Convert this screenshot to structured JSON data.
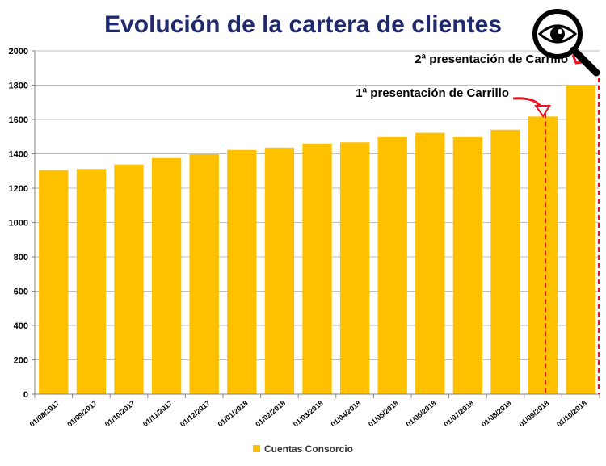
{
  "chart_data": {
    "type": "bar",
    "title": "Evolución de la cartera de clientes",
    "categories": [
      "01/08/2017",
      "01/09/2017",
      "01/10/2017",
      "01/11/2017",
      "01/12/2017",
      "01/01/2018",
      "01/02/2018",
      "01/03/2018",
      "01/04/2018",
      "01/05/2018",
      "01/06/2018",
      "01/07/2018",
      "01/08/2018",
      "01/09/2018",
      "01/10/2018"
    ],
    "series": [
      {
        "name": "Cuentas Consorcio",
        "color": "#ffc000",
        "values": [
          1305,
          1312,
          1338,
          1375,
          1398,
          1422,
          1436,
          1460,
          1467,
          1497,
          1522,
          1497,
          1540,
          1617,
          1800
        ]
      }
    ],
    "ylim": [
      0,
      2000
    ],
    "yticks": [
      "0",
      "200",
      "400",
      "600",
      "800",
      "1000",
      "1200",
      "1400",
      "1600",
      "1800",
      "2000"
    ],
    "grid": true,
    "legend_position": "bottom",
    "annotations": [
      {
        "text": "1ª presentación de Carrillo",
        "category": "01/09/2018"
      },
      {
        "text": "2ª presentación de Carrillo",
        "category": "01/10/2018"
      }
    ],
    "marker_color": "#e8141f",
    "icon": "magnifier-eye-icon"
  }
}
